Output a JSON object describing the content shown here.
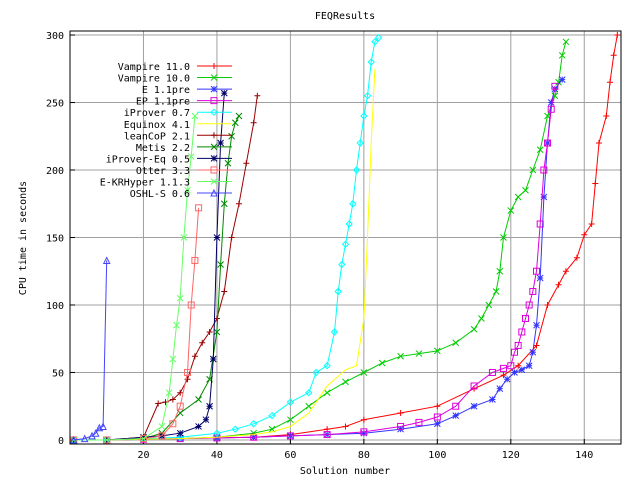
{
  "chart_data": {
    "type": "line",
    "title": "FEQResults",
    "xlabel": "Solution number",
    "ylabel": "CPU time in seconds",
    "xlim": [
      0,
      150
    ],
    "ylim": [
      -3,
      303
    ],
    "xticks": [
      20,
      40,
      60,
      80,
      100,
      120,
      140
    ],
    "yticks": [
      0,
      50,
      100,
      150,
      200,
      250,
      300
    ],
    "grid": true,
    "legend": "top-left",
    "series": [
      {
        "name": "Vampire 11.0",
        "color": "#ff0000",
        "marker": "plus",
        "x": [
          1,
          10,
          20,
          30,
          40,
          50,
          60,
          70,
          75,
          80,
          90,
          100,
          110,
          118,
          122,
          127,
          130,
          133,
          135,
          138,
          140,
          142,
          143,
          144,
          146,
          147,
          148,
          149
        ],
        "y": [
          0,
          0,
          0.5,
          1,
          1.5,
          2,
          4,
          8,
          10,
          15,
          20,
          25,
          38,
          48,
          55,
          70,
          100,
          115,
          125,
          135,
          152,
          160,
          190,
          220,
          240,
          265,
          285,
          300
        ]
      },
      {
        "name": "Vampire 10.0",
        "color": "#00cc00",
        "marker": "cross",
        "x": [
          1,
          10,
          20,
          30,
          40,
          50,
          55,
          60,
          65,
          70,
          75,
          80,
          85,
          90,
          95,
          100,
          105,
          110,
          112,
          114,
          116,
          117,
          118,
          120,
          122,
          124,
          126,
          128,
          130,
          132,
          133,
          134,
          135
        ],
        "y": [
          0,
          0,
          0.5,
          1,
          2,
          5,
          8,
          15,
          25,
          35,
          43,
          50,
          57,
          62,
          64,
          66,
          72,
          82,
          90,
          100,
          110,
          125,
          150,
          170,
          180,
          185,
          200,
          215,
          240,
          255,
          265,
          285,
          295
        ]
      },
      {
        "name": "E 1.1pre",
        "color": "#3333ff",
        "marker": "star",
        "x": [
          1,
          10,
          20,
          30,
          40,
          50,
          60,
          70,
          80,
          90,
          100,
          105,
          110,
          115,
          117,
          119,
          121,
          123,
          125,
          126,
          127,
          128,
          129,
          130,
          131,
          132,
          134
        ],
        "y": [
          0,
          0,
          0.5,
          1,
          1.5,
          2,
          3,
          4,
          5,
          8,
          12,
          18,
          25,
          30,
          38,
          45,
          50,
          52,
          55,
          65,
          85,
          120,
          180,
          220,
          250,
          260,
          267
        ]
      },
      {
        "name": "EP 1.1pre",
        "color": "#dd00dd",
        "marker": "square",
        "x": [
          1,
          10,
          20,
          30,
          40,
          50,
          60,
          70,
          80,
          90,
          95,
          100,
          105,
          110,
          115,
          118,
          120,
          121,
          122,
          123,
          124,
          125,
          126,
          127,
          128,
          129,
          130,
          131,
          132
        ],
        "y": [
          0,
          0,
          0.5,
          1,
          1.5,
          2,
          3,
          4,
          6,
          10,
          13,
          17,
          25,
          40,
          50,
          53,
          55,
          65,
          70,
          80,
          90,
          100,
          110,
          125,
          160,
          200,
          220,
          245,
          262
        ]
      },
      {
        "name": "iProver 0.7",
        "color": "#00ffff",
        "marker": "diamond",
        "x": [
          1,
          10,
          20,
          30,
          40,
          45,
          50,
          55,
          60,
          65,
          67,
          70,
          72,
          73,
          74,
          75,
          76,
          77,
          78,
          79,
          80,
          81,
          82,
          83,
          84
        ],
        "y": [
          0,
          0,
          1,
          2,
          5,
          8,
          12,
          18,
          28,
          35,
          50,
          55,
          80,
          110,
          130,
          145,
          160,
          175,
          200,
          220,
          240,
          255,
          280,
          295,
          298
        ]
      },
      {
        "name": "Equinox 4.1",
        "color": "#ffff00",
        "marker": "none",
        "x": [
          1,
          10,
          20,
          30,
          40,
          50,
          55,
          60,
          65,
          70,
          75,
          78,
          80,
          81,
          82,
          83
        ],
        "y": [
          0,
          0,
          0.5,
          1,
          2,
          4,
          6,
          10,
          20,
          40,
          52,
          55,
          90,
          150,
          220,
          275
        ]
      },
      {
        "name": "leanCoP 2.1",
        "color": "#990000",
        "marker": "plus",
        "x": [
          1,
          10,
          20,
          24,
          26,
          28,
          30,
          32,
          34,
          36,
          38,
          40,
          42,
          44,
          46,
          48,
          50,
          51
        ],
        "y": [
          0,
          0,
          2,
          27,
          28,
          30,
          35,
          45,
          62,
          72,
          80,
          90,
          110,
          150,
          175,
          205,
          235,
          255
        ]
      },
      {
        "name": "Metis 2.2",
        "color": "#008800",
        "marker": "cross",
        "x": [
          1,
          10,
          20,
          25,
          30,
          35,
          38,
          40,
          41,
          42,
          43,
          44,
          45,
          46
        ],
        "y": [
          0,
          0,
          1,
          5,
          20,
          30,
          45,
          80,
          130,
          175,
          205,
          225,
          235,
          240
        ]
      },
      {
        "name": "iProver-Eq 0.5",
        "color": "#000066",
        "marker": "star",
        "x": [
          1,
          10,
          20,
          25,
          30,
          35,
          37,
          38,
          39,
          40,
          41,
          42
        ],
        "y": [
          0,
          0,
          2,
          3,
          5,
          10,
          15,
          25,
          60,
          150,
          220,
          257
        ]
      },
      {
        "name": "Otter 3.3",
        "color": "#ff6666",
        "marker": "square",
        "x": [
          1,
          10,
          20,
          25,
          28,
          30,
          32,
          33,
          34,
          35
        ],
        "y": [
          0,
          0,
          1,
          3,
          12,
          25,
          50,
          100,
          133,
          172
        ]
      },
      {
        "name": "E-KRHyper 1.1.3",
        "color": "#66ff66",
        "marker": "cross",
        "x": [
          1,
          10,
          20,
          25,
          27,
          28,
          29,
          30,
          31,
          32,
          33,
          34
        ],
        "y": [
          0,
          0,
          1,
          10,
          35,
          60,
          85,
          105,
          150,
          185,
          210,
          240
        ]
      },
      {
        "name": "OSHL-S 0.6",
        "color": "#4444ff",
        "marker": "triangle",
        "x": [
          1,
          4,
          6,
          7,
          8,
          9,
          10
        ],
        "y": [
          0,
          1,
          3,
          5,
          9,
          10,
          133
        ]
      }
    ]
  }
}
